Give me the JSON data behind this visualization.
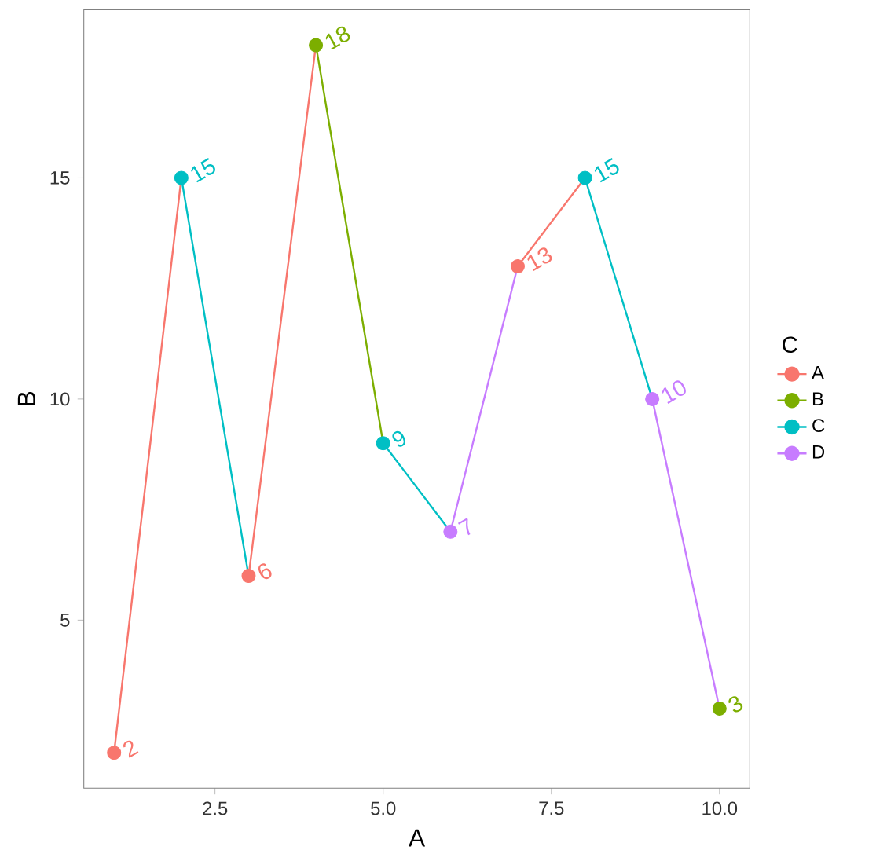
{
  "chart_data": {
    "type": "line",
    "xlabel": "A",
    "ylabel": "B",
    "legend_title": "C",
    "legend": "right",
    "grid": false,
    "xlim": [
      0.55,
      10.45
    ],
    "ylim": [
      1.2,
      18.8
    ],
    "xticks": [
      {
        "value": 2.5,
        "label": "2.5"
      },
      {
        "value": 5,
        "label": "5.0"
      },
      {
        "value": 7.5,
        "label": "7.5"
      },
      {
        "value": 10,
        "label": "10.0"
      }
    ],
    "yticks": [
      5,
      10,
      15
    ],
    "series": [
      {
        "name": "A",
        "color": "#f8766d",
        "marker": "none",
        "x": [
          1,
          2
        ],
        "values": [
          2,
          15
        ]
      },
      {
        "name": "B",
        "color": "#7cae00",
        "marker": "none",
        "x": [
          4,
          5
        ],
        "values": [
          18,
          9
        ]
      },
      {
        "name": "C",
        "color": "#00bfc4",
        "marker": "none",
        "x": [
          2,
          3
        ],
        "values": [
          15,
          6
        ]
      },
      {
        "name": "D",
        "color": "#c77cff",
        "marker": "none",
        "x": [
          6,
          7
        ],
        "values": [
          7,
          13
        ]
      },
      {
        "color": "#f8766d",
        "marker": "none",
        "x": [
          3,
          4
        ],
        "values": [
          6,
          18
        ]
      },
      {
        "color": "#f8766d",
        "marker": "none",
        "x": [
          7,
          8
        ],
        "values": [
          13,
          15
        ]
      },
      {
        "color": "#00bfc4",
        "marker": "none",
        "x": [
          5,
          6
        ],
        "values": [
          9,
          7
        ]
      },
      {
        "color": "#00bfc4",
        "marker": "none",
        "x": [
          8,
          9
        ],
        "values": [
          15,
          10
        ]
      },
      {
        "color": "#c77cff",
        "marker": "none",
        "x": [
          9,
          10
        ],
        "values": [
          10,
          3
        ]
      },
      {
        "type": "scatter",
        "marker": "circle",
        "x": [
          1,
          2,
          3,
          4,
          5,
          6,
          7,
          8,
          9,
          10
        ],
        "values": [
          2,
          15,
          6,
          18,
          9,
          7,
          13,
          15,
          10,
          3
        ],
        "colors": [
          "#f8766d",
          "#00bfc4",
          "#f8766d",
          "#7cae00",
          "#00bfc4",
          "#c77cff",
          "#f8766d",
          "#00bfc4",
          "#c77cff",
          "#7cae00"
        ],
        "value_labels": [
          "2",
          "15",
          "6",
          "18",
          "9",
          "7",
          "13",
          "15",
          "10",
          "3"
        ]
      }
    ]
  }
}
